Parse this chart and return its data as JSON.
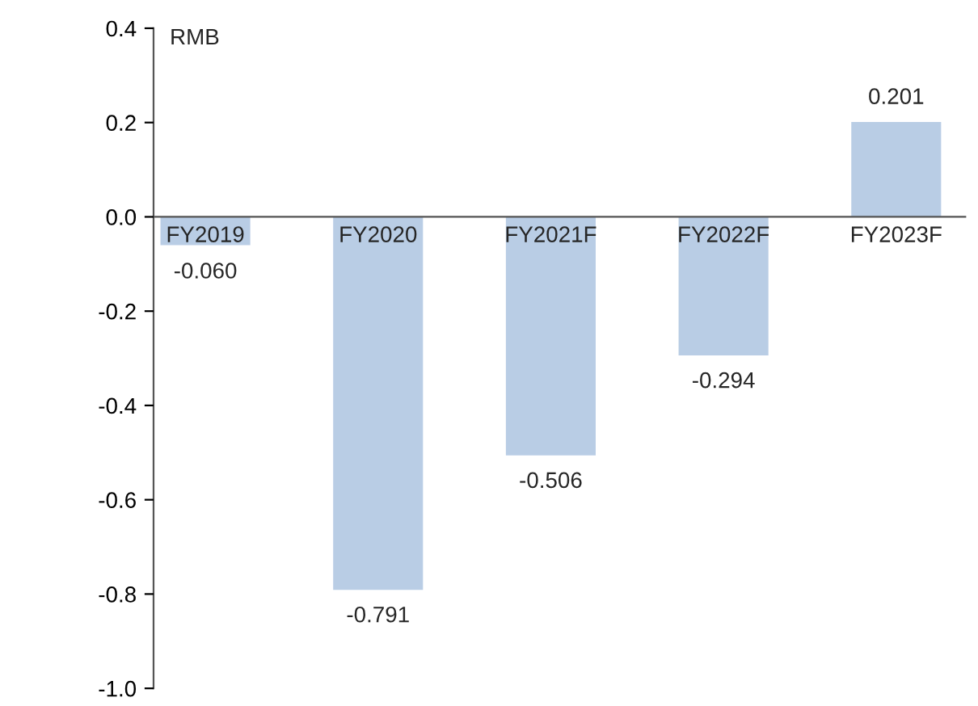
{
  "chart_data": {
    "type": "bar",
    "ylabel": "RMB",
    "categories": [
      "FY2019",
      "FY2020",
      "FY2021F",
      "FY2022F",
      "FY2023F"
    ],
    "values": [
      -0.06,
      -0.791,
      -0.506,
      -0.294,
      0.201
    ],
    "value_labels": [
      "-0.060",
      "-0.791",
      "-0.506",
      "-0.294",
      "0.201"
    ],
    "color": "#b9cde5",
    "ylim": [
      -1.0,
      0.4
    ],
    "yticks": [
      {
        "value": 0.4,
        "label": "0.4"
      },
      {
        "value": 0.2,
        "label": "0.2"
      },
      {
        "value": 0.0,
        "label": "0.0"
      },
      {
        "value": -0.2,
        "label": "-0.2"
      },
      {
        "value": -0.4,
        "label": "-0.4"
      },
      {
        "value": -0.6,
        "label": "-0.6"
      },
      {
        "value": -0.8,
        "label": "-0.8"
      },
      {
        "value": -1.0,
        "label": "-1.0"
      }
    ],
    "grid": false,
    "legend": false
  }
}
